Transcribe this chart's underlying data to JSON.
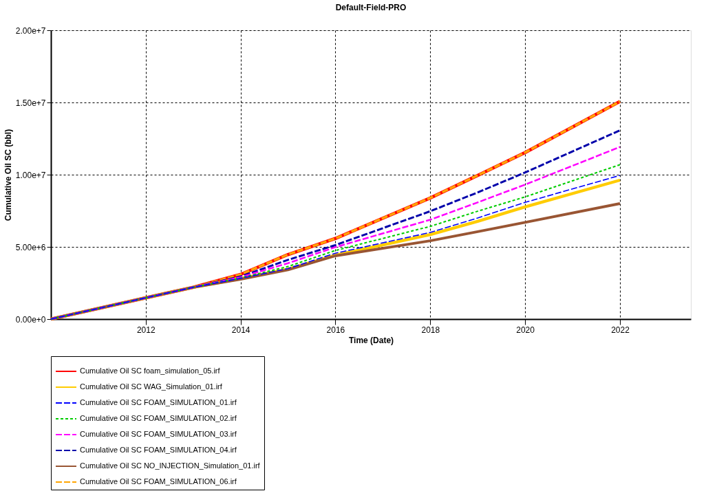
{
  "chart_data": {
    "type": "line",
    "title": "Default-Field-PRO",
    "xlabel": "Time (Date)",
    "ylabel": "Cumulative Oil SC (bbl)",
    "x": [
      "2010-01-01",
      "2012-01-01",
      "2013-01-01",
      "2014-01-01",
      "2015-01-01",
      "2016-01-01",
      "2018-01-01",
      "2019-01-01",
      "2020-01-01",
      "2022-01-01"
    ],
    "series": [
      {
        "name": "Cumulative Oil SC foam_simulation_05.irf",
        "color": "#ff0000",
        "line_style": "solid",
        "values": [
          0,
          1470000,
          2200000,
          3090000,
          4470000,
          5580000,
          8390000,
          9950000,
          11530000,
          15070000
        ]
      },
      {
        "name": "Cumulative Oil SC WAG_Simulation_01.irf",
        "color": "#ffcc00",
        "line_style": "solid",
        "values": [
          0,
          1470000,
          2200000,
          2800000,
          3460000,
          4420000,
          5850000,
          6770000,
          7770000,
          9620000
        ]
      },
      {
        "name": "Cumulative Oil SC FOAM_SIMULATION_01.irf",
        "color": "#0000ff",
        "line_style": "dashed",
        "values": [
          0,
          1470000,
          2200000,
          2820000,
          3500000,
          4560000,
          6000000,
          7000000,
          8080000,
          9950000
        ]
      },
      {
        "name": "Cumulative Oil SC FOAM_SIMULATION_02.irf",
        "color": "#00cc00",
        "line_style": "dotted",
        "values": [
          0,
          1470000,
          2200000,
          2850000,
          3640000,
          4750000,
          6420000,
          7470000,
          8460000,
          10690000
        ]
      },
      {
        "name": "Cumulative Oil SC FOAM_SIMULATION_03.irf",
        "color": "#ff00ff",
        "line_style": "dashed",
        "values": [
          0,
          1470000,
          2200000,
          2900000,
          3870000,
          4980000,
          6880000,
          8080000,
          9310000,
          11920000
        ]
      },
      {
        "name": "Cumulative Oil SC FOAM_SIMULATION_04.irf",
        "color": "#0000aa",
        "line_style": "dashed",
        "values": [
          0,
          1470000,
          2200000,
          2950000,
          4100000,
          5120000,
          7470000,
          8770000,
          10150000,
          13070000
        ]
      },
      {
        "name": "Cumulative Oil SC NO_INJECTION_Simulation_01.irf",
        "color": "#995533",
        "line_style": "solid",
        "values": [
          0,
          1470000,
          2200000,
          2760000,
          3410000,
          4380000,
          5420000,
          6050000,
          6700000,
          8000000
        ]
      },
      {
        "name": "Cumulative Oil SC FOAM_SIMULATION_06.irf",
        "color": "#ffa500",
        "line_style": "dashed",
        "values": [
          0,
          1470000,
          2200000,
          3090000,
          4470000,
          5580000,
          8390000,
          9950000,
          11530000,
          15070000
        ]
      }
    ],
    "xlim": [
      "2010-01-01",
      "2023-07-01"
    ],
    "xticks": [
      {
        "value": "2012-01-01",
        "label": "2012"
      },
      {
        "value": "2014-01-01",
        "label": "2014"
      },
      {
        "value": "2016-01-01",
        "label": "2016"
      },
      {
        "value": "2018-01-01",
        "label": "2018"
      },
      {
        "value": "2020-01-01",
        "label": "2020"
      },
      {
        "value": "2022-01-01",
        "label": "2022"
      }
    ],
    "ylim": [
      0,
      20000000
    ],
    "yticks": [
      {
        "value": 0,
        "label": "0.00e+0"
      },
      {
        "value": 5000000,
        "label": "5.00e+6"
      },
      {
        "value": 10000000,
        "label": "1.00e+7"
      },
      {
        "value": 15000000,
        "label": "1.50e+7"
      },
      {
        "value": 20000000,
        "label": "2.00e+7"
      }
    ],
    "grid": true,
    "legend": "bottom",
    "marker": "none"
  }
}
